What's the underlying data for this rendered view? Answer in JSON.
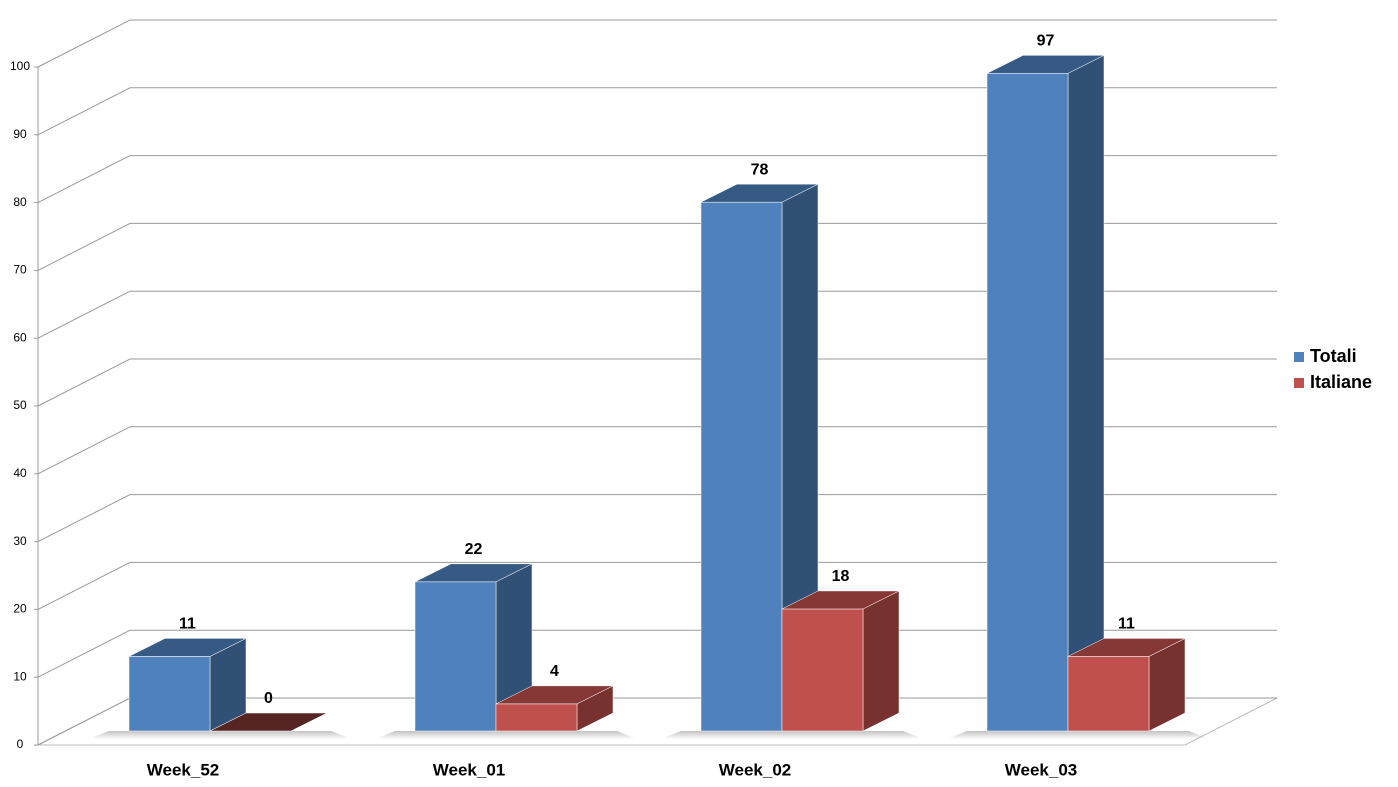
{
  "chart_data": {
    "type": "bar3d",
    "categories": [
      "Week_52",
      "Week_01",
      "Week_02",
      "Week_03"
    ],
    "series": [
      {
        "name": "Totali",
        "color": "#4f81bd",
        "values": [
          11,
          22,
          78,
          97
        ]
      },
      {
        "name": "Italiane",
        "color": "#c0504d",
        "values": [
          0,
          4,
          18,
          11
        ]
      }
    ],
    "ylim": [
      0,
      100
    ],
    "yticks": [
      0,
      10,
      20,
      30,
      40,
      50,
      60,
      70,
      80,
      90,
      100
    ],
    "grid": true,
    "legend": "right"
  }
}
